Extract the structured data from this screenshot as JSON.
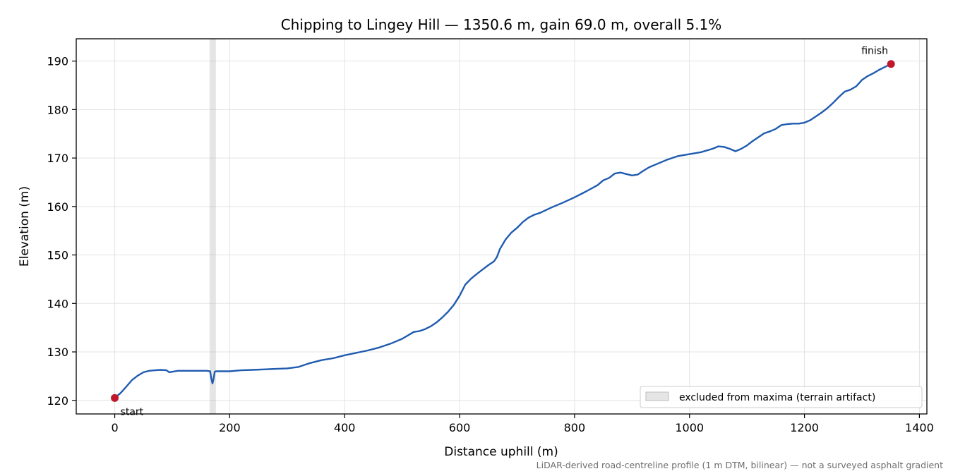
{
  "chart_data": {
    "type": "line",
    "title": "Chipping to Lingey Hill — 1350.6 m, gain 69.0 m, overall 5.1%",
    "xlabel": "Distance uphill (m)",
    "ylabel": "Elevation (m)",
    "xlim": [
      -67,
      1413
    ],
    "ylim": [
      117.2,
      194.6
    ],
    "xticks": [
      0,
      200,
      400,
      600,
      800,
      1000,
      1200,
      1400
    ],
    "yticks": [
      120,
      130,
      140,
      150,
      160,
      170,
      180,
      190
    ],
    "grid": true,
    "legend_position": "lower-right",
    "excluded_region": {
      "x": [
        165,
        176
      ],
      "label": "excluded from maxima (terrain artifact)",
      "color": "#bdbdbd"
    },
    "series": [
      {
        "color": "#1f5bb0",
        "x": [
          0,
          10,
          20,
          30,
          40,
          50,
          60,
          70,
          80,
          90,
          95,
          100,
          110,
          120,
          140,
          160,
          166,
          168,
          170,
          172,
          174,
          176,
          180,
          200,
          220,
          240,
          260,
          280,
          300,
          320,
          340,
          360,
          380,
          400,
          420,
          440,
          460,
          480,
          500,
          510,
          520,
          530,
          540,
          550,
          560,
          570,
          580,
          590,
          600,
          610,
          620,
          630,
          640,
          650,
          660,
          665,
          670,
          680,
          690,
          700,
          710,
          720,
          730,
          740,
          760,
          780,
          800,
          820,
          840,
          850,
          860,
          870,
          880,
          890,
          900,
          910,
          920,
          930,
          940,
          960,
          980,
          1000,
          1020,
          1040,
          1050,
          1060,
          1070,
          1080,
          1090,
          1100,
          1110,
          1120,
          1130,
          1140,
          1150,
          1160,
          1170,
          1180,
          1190,
          1200,
          1210,
          1220,
          1230,
          1240,
          1250,
          1260,
          1270,
          1280,
          1290,
          1300,
          1310,
          1320,
          1330,
          1340,
          1350.6
        ],
        "y": [
          120.5,
          121.5,
          122.8,
          124.2,
          125.1,
          125.8,
          126.1,
          126.2,
          126.3,
          126.2,
          125.8,
          125.9,
          126.1,
          126.1,
          126.1,
          126.1,
          126.0,
          124.5,
          123.5,
          124.5,
          125.9,
          126.0,
          126.0,
          126.0,
          126.2,
          126.3,
          126.4,
          126.5,
          126.6,
          126.9,
          127.7,
          128.3,
          128.7,
          129.3,
          129.8,
          130.3,
          130.9,
          131.7,
          132.7,
          133.4,
          134.1,
          134.3,
          134.7,
          135.3,
          136.1,
          137.1,
          138.3,
          139.7,
          141.6,
          143.9,
          145.1,
          146.1,
          147.0,
          147.9,
          148.7,
          149.6,
          151.2,
          153.2,
          154.6,
          155.6,
          156.8,
          157.7,
          158.3,
          158.7,
          159.8,
          160.8,
          161.9,
          163.1,
          164.4,
          165.4,
          165.9,
          166.8,
          167.0,
          166.7,
          166.4,
          166.6,
          167.4,
          168.1,
          168.6,
          169.6,
          170.4,
          170.8,
          171.2,
          171.9,
          172.4,
          172.3,
          171.9,
          171.4,
          171.9,
          172.6,
          173.5,
          174.3,
          175.1,
          175.5,
          176.0,
          176.8,
          177.0,
          177.1,
          177.1,
          177.3,
          177.8,
          178.6,
          179.4,
          180.3,
          181.4,
          182.6,
          183.7,
          184.1,
          184.8,
          186.1,
          186.9,
          187.5,
          188.2,
          188.8,
          189.4
        ]
      }
    ],
    "markers": [
      {
        "x": 0,
        "y": 120.5,
        "label": "start",
        "color": "#c0172c"
      },
      {
        "x": 1350.6,
        "y": 189.4,
        "label": "finish",
        "color": "#c0172c"
      }
    ],
    "footnote": "LiDAR-derived road-centreline profile (1 m DTM, bilinear) — not a surveyed asphalt gradient"
  }
}
